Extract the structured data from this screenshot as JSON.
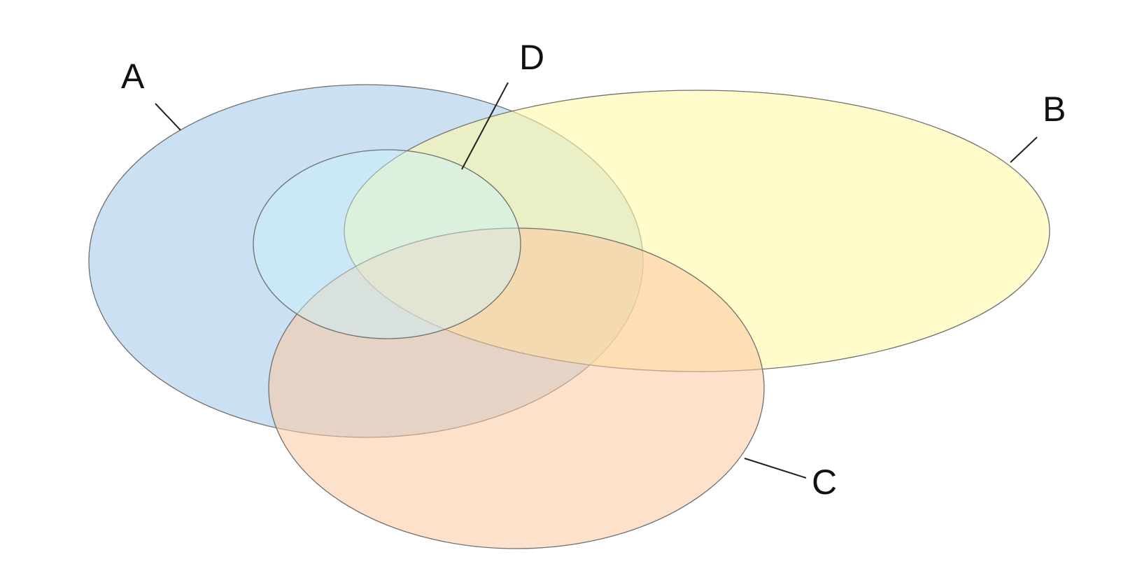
{
  "sets": [
    {
      "id": "A",
      "label": "A",
      "fill": "#a9cdeb",
      "fill_opacity": 0.6
    },
    {
      "id": "B",
      "label": "B",
      "fill": "#fff9a8",
      "fill_opacity": 0.6
    },
    {
      "id": "C",
      "label": "C",
      "fill": "#fbc9a0",
      "fill_opacity": 0.55
    },
    {
      "id": "D",
      "label": "D",
      "fill": "#c9f2f9",
      "fill_opacity": 0.45
    }
  ],
  "colors": {
    "outline": "#6f6f6f",
    "leader_line": "#222222",
    "label_text": "#111111",
    "background": "#ffffff"
  }
}
